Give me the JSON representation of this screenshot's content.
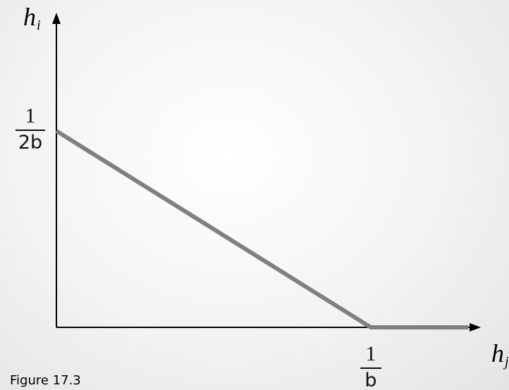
{
  "caption": "Figure 17.3",
  "chart_data": {
    "type": "line",
    "xlabel": {
      "base": "h",
      "sub": "j"
    },
    "ylabel": {
      "base": "h",
      "sub": "i"
    },
    "x_tick": {
      "num": "1",
      "den": "b",
      "value": 1
    },
    "y_tick": {
      "num": "1",
      "den": "2b",
      "value": 0.5
    },
    "xlim": [
      0,
      1.35
    ],
    "ylim": [
      0,
      1.0
    ],
    "series": [
      {
        "x": [
          0,
          1,
          1.31
        ],
        "y": [
          0.5,
          0,
          0
        ],
        "color": "#808080"
      }
    ],
    "grid": false
  }
}
